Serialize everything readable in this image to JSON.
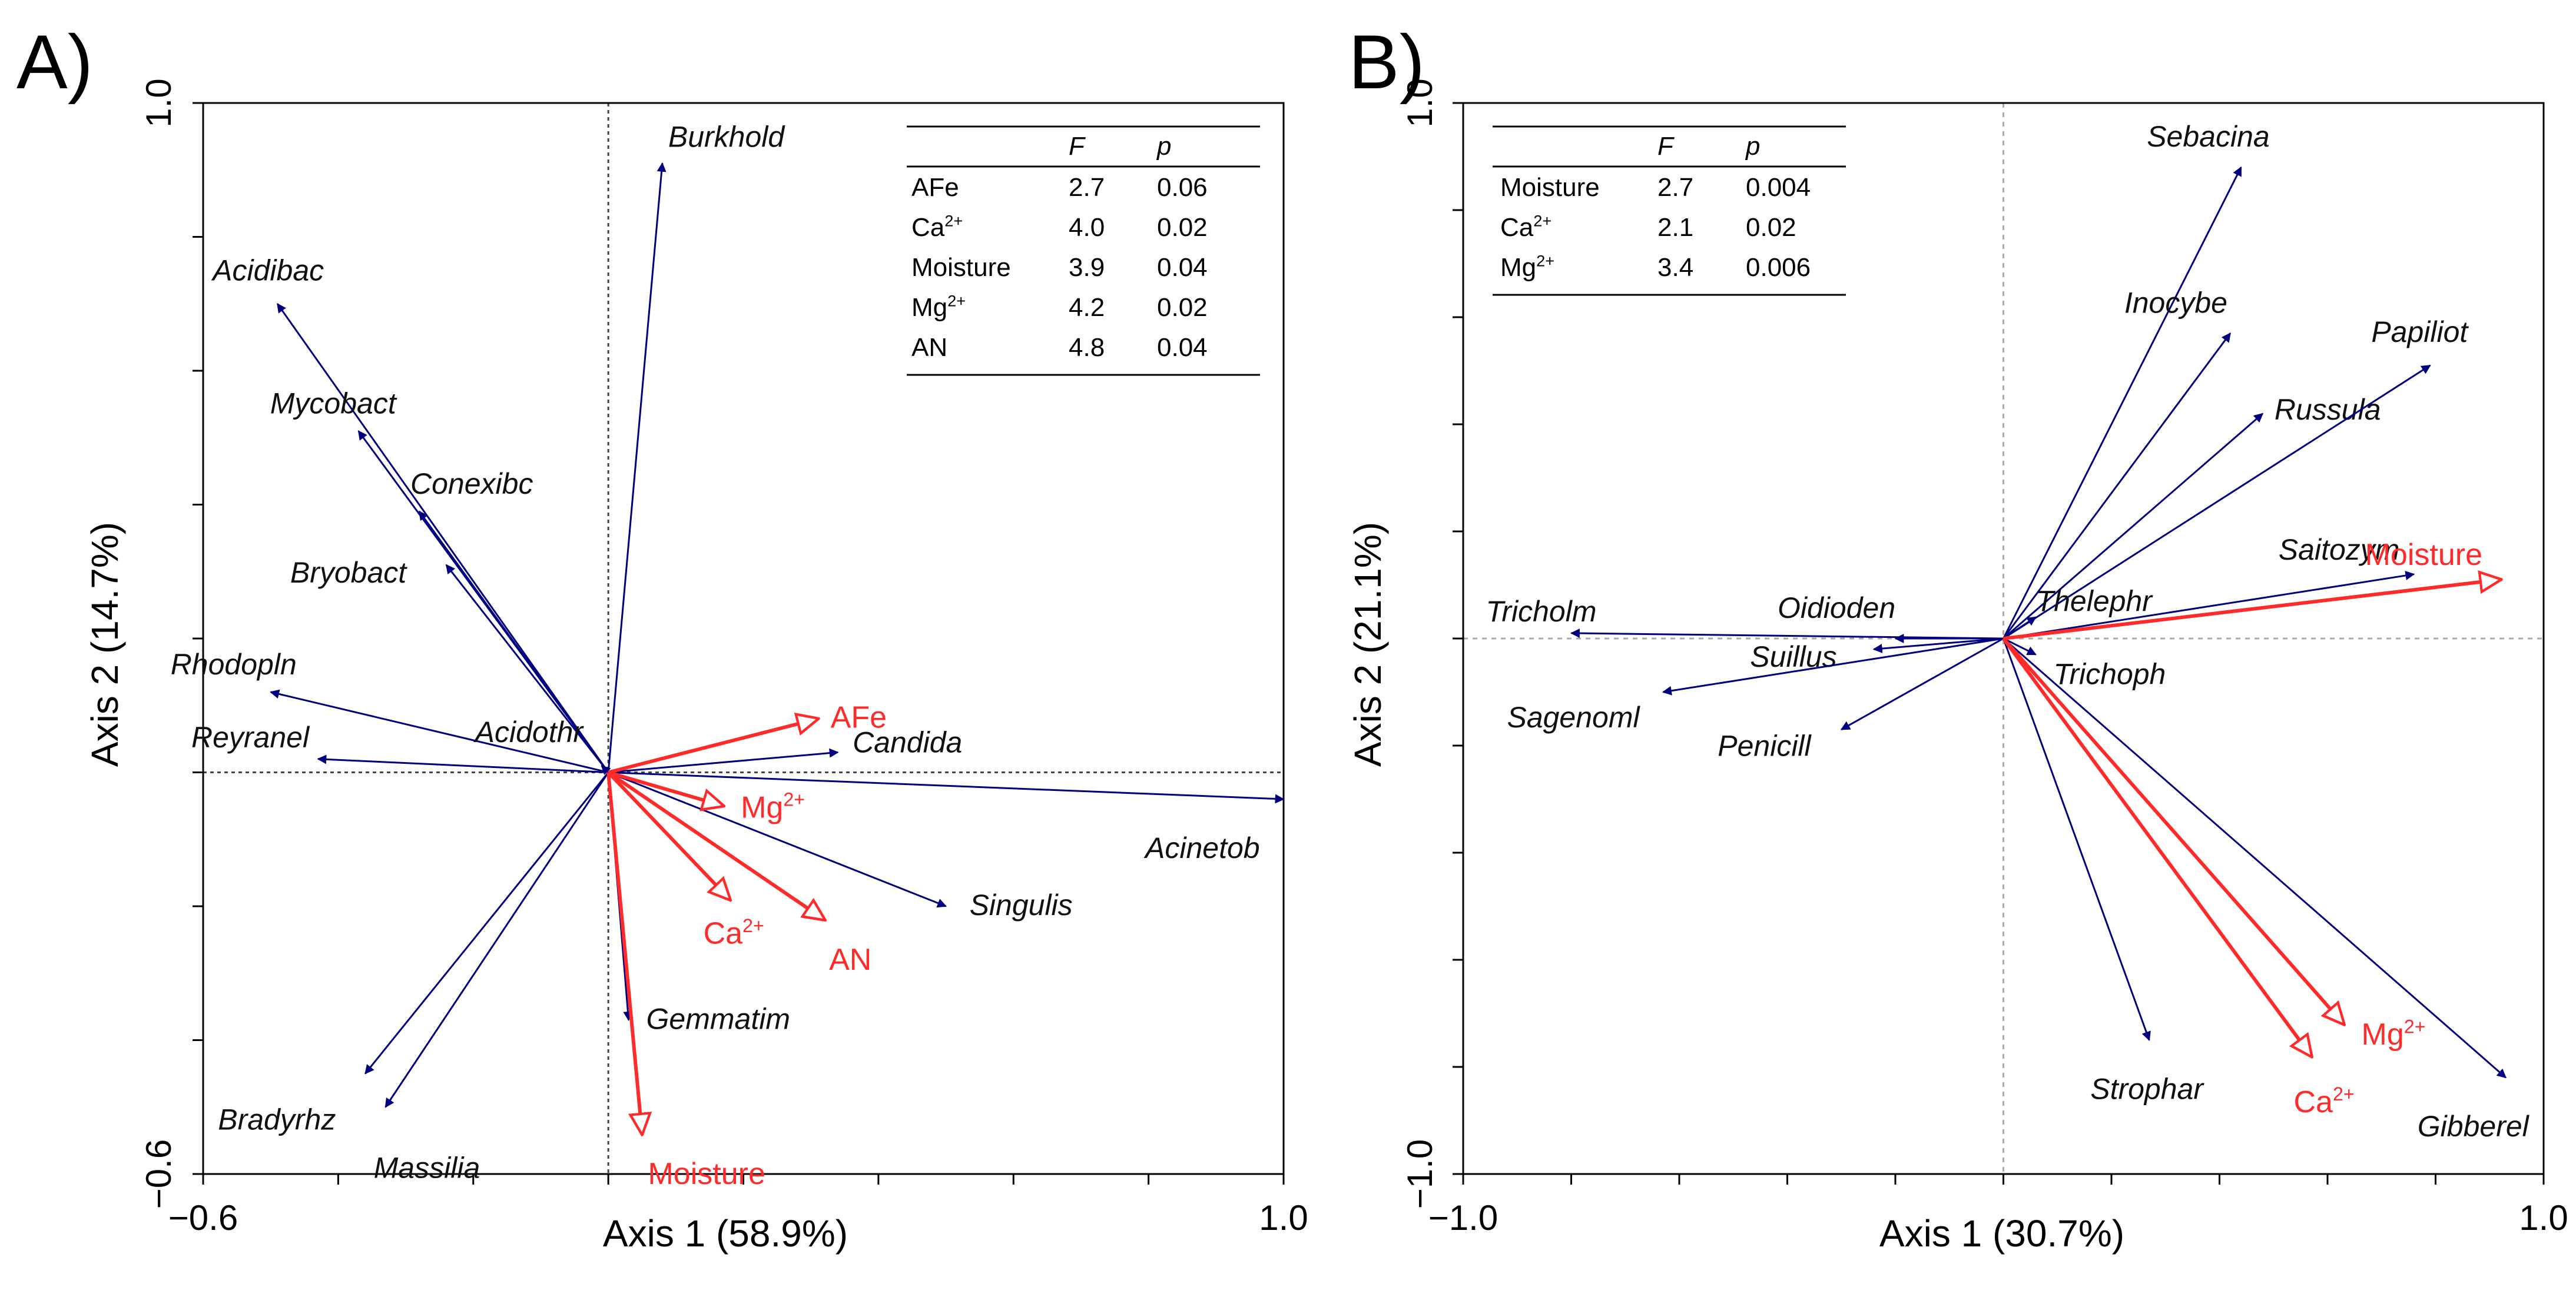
{
  "chart_data": [
    {
      "panel": "A)",
      "type": "biplot",
      "xlabel": "Axis 1 (58.9%)",
      "ylabel": "Axis 2 (14.7%)",
      "xlim": [
        -0.6,
        1.0
      ],
      "ylim": [
        -0.6,
        1.0
      ],
      "xticks": [
        -0.6,
        1.0
      ],
      "yticks": [
        -0.6,
        1.0
      ],
      "xtick_labels": [
        "−0.6",
        "1.0"
      ],
      "ytick_labels": [
        "−0.6",
        "1.0"
      ],
      "species_vectors": [
        {
          "name": "Burkhold",
          "x": 0.08,
          "y": 0.91
        },
        {
          "name": "Acidibac",
          "x": -0.49,
          "y": 0.7
        },
        {
          "name": "Mycobact",
          "x": -0.37,
          "y": 0.51
        },
        {
          "name": "Conexibc",
          "x": -0.28,
          "y": 0.39
        },
        {
          "name": "Bryobact",
          "x": -0.24,
          "y": 0.31
        },
        {
          "name": "Rhodopln",
          "x": -0.5,
          "y": 0.12
        },
        {
          "name": "Reyranel",
          "x": -0.43,
          "y": 0.02
        },
        {
          "name": "Acidothr",
          "x": -0.01,
          "y": 0.01
        },
        {
          "name": "Candida",
          "x": 0.34,
          "y": 0.03
        },
        {
          "name": "Acinetob",
          "x": 1.0,
          "y": -0.04
        },
        {
          "name": "Singulis",
          "x": 0.5,
          "y": -0.2
        },
        {
          "name": "Gemmatim",
          "x": 0.03,
          "y": -0.37
        },
        {
          "name": "Bradyrhz",
          "x": -0.36,
          "y": -0.45
        },
        {
          "name": "Massilia",
          "x": -0.33,
          "y": -0.5
        }
      ],
      "environment_vectors": [
        {
          "name": "AFe",
          "x": 0.31,
          "y": 0.08
        },
        {
          "name": "Mg2+",
          "x": 0.17,
          "y": -0.05
        },
        {
          "name": "Ca2+",
          "x": 0.18,
          "y": -0.19
        },
        {
          "name": "AN",
          "x": 0.32,
          "y": -0.22
        },
        {
          "name": "Moisture",
          "x": 0.05,
          "y": -0.54
        }
      ],
      "table": {
        "headers": [
          "",
          "F",
          "p"
        ],
        "rows": [
          [
            "AFe",
            "2.7",
            "0.06"
          ],
          [
            "Ca2+",
            "4.0",
            "0.02"
          ],
          [
            "Moisture",
            "3.9",
            "0.04"
          ],
          [
            "Mg2+",
            "4.2",
            "0.02"
          ],
          [
            "AN",
            "4.8",
            "0.04"
          ]
        ]
      }
    },
    {
      "panel": "B)",
      "type": "biplot",
      "xlabel": "Axis 1 (30.7%)",
      "ylabel": "Axis 2 (21.1%)",
      "xlim": [
        -1.0,
        1.0
      ],
      "ylim": [
        -1.0,
        1.0
      ],
      "xticks": [
        -1.0,
        1.0
      ],
      "yticks": [
        -1.0,
        1.0
      ],
      "xtick_labels": [
        "−1.0",
        "1.0"
      ],
      "ytick_labels": [
        "−1.0",
        "1.0"
      ],
      "species_vectors": [
        {
          "name": "Sebacina",
          "x": 0.44,
          "y": 0.88
        },
        {
          "name": "Inocybe",
          "x": 0.42,
          "y": 0.57
        },
        {
          "name": "Russula",
          "x": 0.48,
          "y": 0.42
        },
        {
          "name": "Papiliot",
          "x": 0.79,
          "y": 0.51
        },
        {
          "name": "Saitozym",
          "x": 0.76,
          "y": 0.12
        },
        {
          "name": "Thelephr",
          "x": 0.06,
          "y": 0.04
        },
        {
          "name": "Tricholm",
          "x": -0.8,
          "y": 0.01
        },
        {
          "name": "Oidioden",
          "x": -0.2,
          "y": 0.0
        },
        {
          "name": "Suillus",
          "x": -0.24,
          "y": -0.02
        },
        {
          "name": "Trichoph",
          "x": 0.06,
          "y": -0.03
        },
        {
          "name": "Sagenoml",
          "x": -0.63,
          "y": -0.1
        },
        {
          "name": "Penicill",
          "x": -0.3,
          "y": -0.17
        },
        {
          "name": "Strophar",
          "x": 0.27,
          "y": -0.75
        },
        {
          "name": "Gibberel",
          "x": 0.93,
          "y": -0.82
        }
      ],
      "environment_vectors": [
        {
          "name": "Moisture",
          "x": 0.92,
          "y": 0.11
        },
        {
          "name": "Mg2+",
          "x": 0.63,
          "y": -0.72
        },
        {
          "name": "Ca2+",
          "x": 0.57,
          "y": -0.78
        }
      ],
      "table": {
        "headers": [
          "",
          "F",
          "p"
        ],
        "rows": [
          [
            "Moisture",
            "2.7",
            "0.004"
          ],
          [
            "Ca2+",
            "2.1",
            "0.02"
          ],
          [
            "Mg2+",
            "3.4",
            "0.006"
          ]
        ]
      }
    }
  ],
  "colors": {
    "species": "#00007f",
    "environment": "#ff2a2a",
    "axes": "#000000",
    "refline_a": "#444444",
    "refline_b": "#aaaaaa"
  }
}
